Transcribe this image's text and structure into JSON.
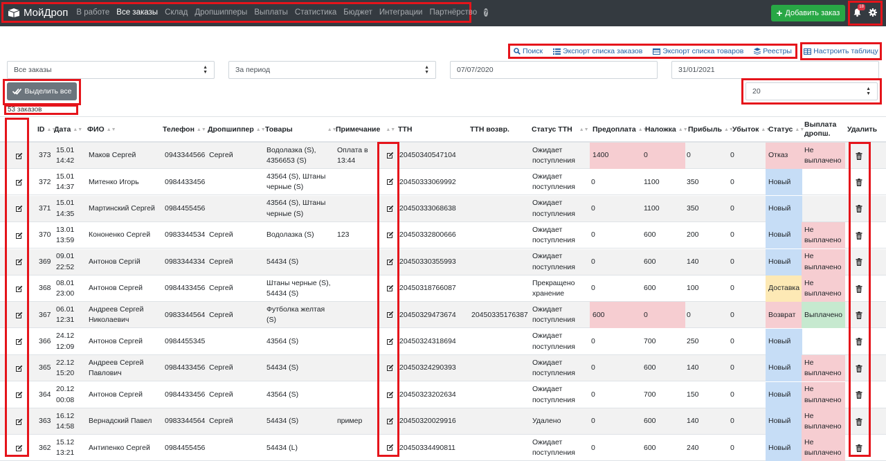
{
  "navbar": {
    "brand": "МойДроп",
    "links": [
      {
        "label": "В работе",
        "active": false
      },
      {
        "label": "Все заказы",
        "active": true
      },
      {
        "label": "Склад",
        "active": false
      },
      {
        "label": "Дропшипперы",
        "active": false
      },
      {
        "label": "Выплаты",
        "active": false
      },
      {
        "label": "Статистика",
        "active": false
      },
      {
        "label": "Бюджет",
        "active": false
      },
      {
        "label": "Интеграции",
        "active": false
      },
      {
        "label": "Партнёрство",
        "active": false
      }
    ],
    "help_glyph": "?",
    "add_order_label": "Добавить заказ",
    "notifications_count": "18"
  },
  "toolbar": {
    "search_label": "Поиск",
    "export_orders_label": "Экспорт списка заказов",
    "export_products_label": "Экспорт списка товаров",
    "registries_label": "Реестры",
    "configure_table_label": "Настроить таблицу"
  },
  "filters": {
    "orders_filter_value": "Все заказы",
    "period_value": "За период",
    "date_from": "07/07/2020",
    "date_to": "31/01/2021",
    "per_page_value": "20"
  },
  "select_all_label": "Выделить все",
  "orders_count": "53 заказов",
  "table": {
    "headers": {
      "id": "ID",
      "date": "Дата",
      "name": "ФИО",
      "phone": "Телефон",
      "dropshipper": "Дропшиппер",
      "products": "Товары",
      "note": "Примечание",
      "ttn": "ТТН",
      "ttn_return": "ТТН возвр.",
      "ttn_status": "Статус ТТН",
      "prepay": "Предоплата",
      "cod": "Наложка",
      "profit": "Прибыль",
      "loss": "Убыток",
      "status": "Статус",
      "payout": "Выплата дропш.",
      "delete": "Удалить"
    },
    "rows": [
      {
        "id": "373",
        "date": "15.01 14:42",
        "name": "Маков Сергей",
        "phone": "0943344566",
        "dropshipper": "Сергей",
        "products": "Водолазка (S), 4356653 (S)",
        "note": "Оплата в 13:44",
        "ttn": "20450340547104",
        "ttn_return": "",
        "ttn_status": "Ожидает поступления",
        "prepay": "1400",
        "cod": "0",
        "profit": "0",
        "loss": "0",
        "status": "Отказ",
        "payout": "Не выплачено"
      },
      {
        "id": "372",
        "date": "15.01 14:37",
        "name": "Митенко Игорь",
        "phone": "0984433456",
        "dropshipper": "",
        "products": "43564 (S), Штаны черные (S)",
        "note": "",
        "ttn": "20450333069992",
        "ttn_return": "",
        "ttn_status": "Ожидает поступления",
        "prepay": "0",
        "cod": "1100",
        "profit": "350",
        "loss": "0",
        "status": "Новый",
        "payout": ""
      },
      {
        "id": "371",
        "date": "15.01 14:35",
        "name": "Мартинский Сергей",
        "phone": "0984455456",
        "dropshipper": "",
        "products": "43564 (S), Штаны черные (S)",
        "note": "",
        "ttn": "20450333068638",
        "ttn_return": "",
        "ttn_status": "Ожидает поступления",
        "prepay": "0",
        "cod": "1100",
        "profit": "350",
        "loss": "0",
        "status": "Новый",
        "payout": ""
      },
      {
        "id": "370",
        "date": "13.01 13:59",
        "name": "Кононенко Сергей",
        "phone": "0983344534",
        "dropshipper": "Сергей",
        "products": "Водолазка (S)",
        "note": "123",
        "ttn": "20450332800666",
        "ttn_return": "",
        "ttn_status": "Ожидает поступления",
        "prepay": "0",
        "cod": "600",
        "profit": "200",
        "loss": "0",
        "status": "Новый",
        "payout": "Не выплачено"
      },
      {
        "id": "369",
        "date": "09.01 22:52",
        "name": "Антонов Сергій",
        "phone": "0983344334",
        "dropshipper": "Сергей",
        "products": "54434 (S)",
        "note": "",
        "ttn": "20450330355993",
        "ttn_return": "",
        "ttn_status": "Ожидает поступления",
        "prepay": "0",
        "cod": "600",
        "profit": "140",
        "loss": "0",
        "status": "Новый",
        "payout": "Не выплачено"
      },
      {
        "id": "368",
        "date": "08.01 23:00",
        "name": "Антонов Сергей",
        "phone": "0984433456",
        "dropshipper": "Сергей",
        "products": "Штаны черные (S), 54434 (S)",
        "note": "",
        "ttn": "20450318766087",
        "ttn_return": "",
        "ttn_status": "Прекращено хранение",
        "prepay": "0",
        "cod": "600",
        "profit": "100",
        "loss": "0",
        "status": "Доставка",
        "payout": "Не выплачено"
      },
      {
        "id": "367",
        "date": "06.01 12:31",
        "name": "Андреев Сергей Николаевич",
        "phone": "0983344564",
        "dropshipper": "Сергей",
        "products": "Футболка желтая (S)",
        "note": "",
        "ttn": "20450329473674",
        "ttn_return": "20450335176387",
        "ttn_status": "Ожидает поступления",
        "prepay": "600",
        "cod": "0",
        "profit": "0",
        "loss": "0",
        "status": "Возврат",
        "payout": "Выплачено"
      },
      {
        "id": "366",
        "date": "24.12 12:09",
        "name": "Антонов Сергей",
        "phone": "0984455345",
        "dropshipper": "",
        "products": "43564 (S)",
        "note": "",
        "ttn": "20450324318694",
        "ttn_return": "",
        "ttn_status": "Ожидает поступления",
        "prepay": "0",
        "cod": "700",
        "profit": "250",
        "loss": "0",
        "status": "Новый",
        "payout": ""
      },
      {
        "id": "365",
        "date": "22.12 15:20",
        "name": "Андреев Сергей Павлович",
        "phone": "0984433456",
        "dropshipper": "Сергей",
        "products": "54434 (S)",
        "note": "",
        "ttn": "20450324290393",
        "ttn_return": "",
        "ttn_status": "Ожидает поступления",
        "prepay": "0",
        "cod": "600",
        "profit": "140",
        "loss": "0",
        "status": "Новый",
        "payout": "Не выплачено"
      },
      {
        "id": "364",
        "date": "20.12 00:08",
        "name": "Антонов Сергей",
        "phone": "0984433456",
        "dropshipper": "Сергей",
        "products": "43564 (S)",
        "note": "",
        "ttn": "20450323202634",
        "ttn_return": "",
        "ttn_status": "Ожидает поступления",
        "prepay": "0",
        "cod": "700",
        "profit": "150",
        "loss": "0",
        "status": "Новый",
        "payout": "Не выплачено"
      },
      {
        "id": "363",
        "date": "16.12 14:58",
        "name": "Вернадский Павел",
        "phone": "0983344564",
        "dropshipper": "Сергей",
        "products": "54434 (S)",
        "note": "пример",
        "ttn": "20450320029916",
        "ttn_return": "",
        "ttn_status": "Удалено",
        "prepay": "0",
        "cod": "600",
        "profit": "140",
        "loss": "0",
        "status": "Новый",
        "payout": "Не выплачено"
      },
      {
        "id": "362",
        "date": "15.12 13:21",
        "name": "Антипенко Сергей",
        "phone": "0984455456",
        "dropshipper": "",
        "products": "54434 (L)",
        "note": "",
        "ttn": "20450334490811",
        "ttn_return": "",
        "ttn_status": "Ожидает поступления",
        "prepay": "0",
        "cod": "600",
        "profit": "240",
        "loss": "0",
        "status": "Новый",
        "payout": "Не выплачено"
      }
    ]
  },
  "colors": {
    "navbar_bg": "#343a40",
    "success": "#28a745",
    "highlight_red": "#e5141b",
    "status_refusal": "#f6cdd1",
    "status_new": "#c6ddf6",
    "status_delivery": "#fde9b5",
    "status_paid": "#c6e9cf"
  }
}
